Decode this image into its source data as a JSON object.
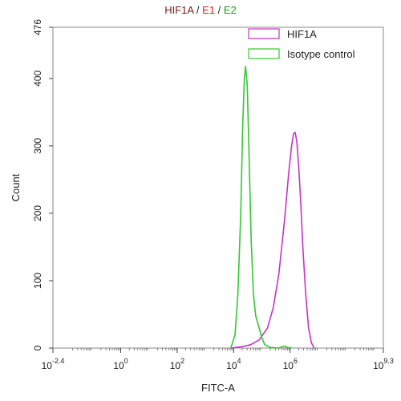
{
  "chart_data": {
    "type": "line",
    "title_parts": [
      {
        "text": "HIF1A",
        "color": "#7a1a1a"
      },
      {
        "text": " / ",
        "color": "#222222"
      },
      {
        "text": "E1",
        "color": "#e02020"
      },
      {
        "text": " / ",
        "color": "#222222"
      },
      {
        "text": "E2",
        "color": "#1a9a1a"
      }
    ],
    "xlabel": "FITC-A",
    "ylabel": "Count",
    "x_scale": "log10",
    "xlim_log10": [
      -2.4,
      9.3
    ],
    "ylim": [
      0,
      476
    ],
    "x_ticks": [
      {
        "base": "10",
        "exp": "-2.4",
        "log": -2.4
      },
      {
        "base": "10",
        "exp": "0",
        "log": 0
      },
      {
        "base": "10",
        "exp": "2",
        "log": 2
      },
      {
        "base": "10",
        "exp": "4",
        "log": 4
      },
      {
        "base": "10",
        "exp": "6",
        "log": 6
      },
      {
        "base": "10",
        "exp": "9.3",
        "log": 9.3
      }
    ],
    "y_ticks": [
      {
        "label": "0",
        "value": 0
      },
      {
        "label": "100",
        "value": 100
      },
      {
        "label": "200",
        "value": 200
      },
      {
        "label": "300",
        "value": 300
      },
      {
        "label": "400",
        "value": 400
      },
      {
        "label": "476",
        "value": 476
      }
    ],
    "grid": false,
    "legend_position": "top-right",
    "series": [
      {
        "name": "HIF1A",
        "color": "#c832c8",
        "points_log10_x": [
          [
            3.9,
            0
          ],
          [
            4.3,
            2
          ],
          [
            4.6,
            5
          ],
          [
            4.9,
            12
          ],
          [
            5.2,
            30
          ],
          [
            5.4,
            60
          ],
          [
            5.6,
            110
          ],
          [
            5.8,
            190
          ],
          [
            5.95,
            260
          ],
          [
            6.05,
            300
          ],
          [
            6.12,
            318
          ],
          [
            6.18,
            320
          ],
          [
            6.24,
            305
          ],
          [
            6.3,
            270
          ],
          [
            6.37,
            220
          ],
          [
            6.45,
            150
          ],
          [
            6.55,
            80
          ],
          [
            6.65,
            30
          ],
          [
            6.75,
            8
          ],
          [
            6.85,
            0
          ]
        ]
      },
      {
        "name": "Isotype control",
        "color": "#32c832",
        "points_log10_x": [
          [
            3.9,
            0
          ],
          [
            4.05,
            20
          ],
          [
            4.15,
            80
          ],
          [
            4.25,
            200
          ],
          [
            4.32,
            330
          ],
          [
            4.38,
            400
          ],
          [
            4.42,
            418
          ],
          [
            4.48,
            390
          ],
          [
            4.55,
            280
          ],
          [
            4.62,
            160
          ],
          [
            4.7,
            80
          ],
          [
            4.78,
            48
          ],
          [
            4.9,
            30
          ],
          [
            5.0,
            15
          ],
          [
            5.1,
            5
          ],
          [
            5.3,
            1
          ],
          [
            5.6,
            0
          ],
          [
            5.8,
            3
          ],
          [
            5.9,
            1
          ],
          [
            6.05,
            0
          ]
        ]
      }
    ]
  }
}
